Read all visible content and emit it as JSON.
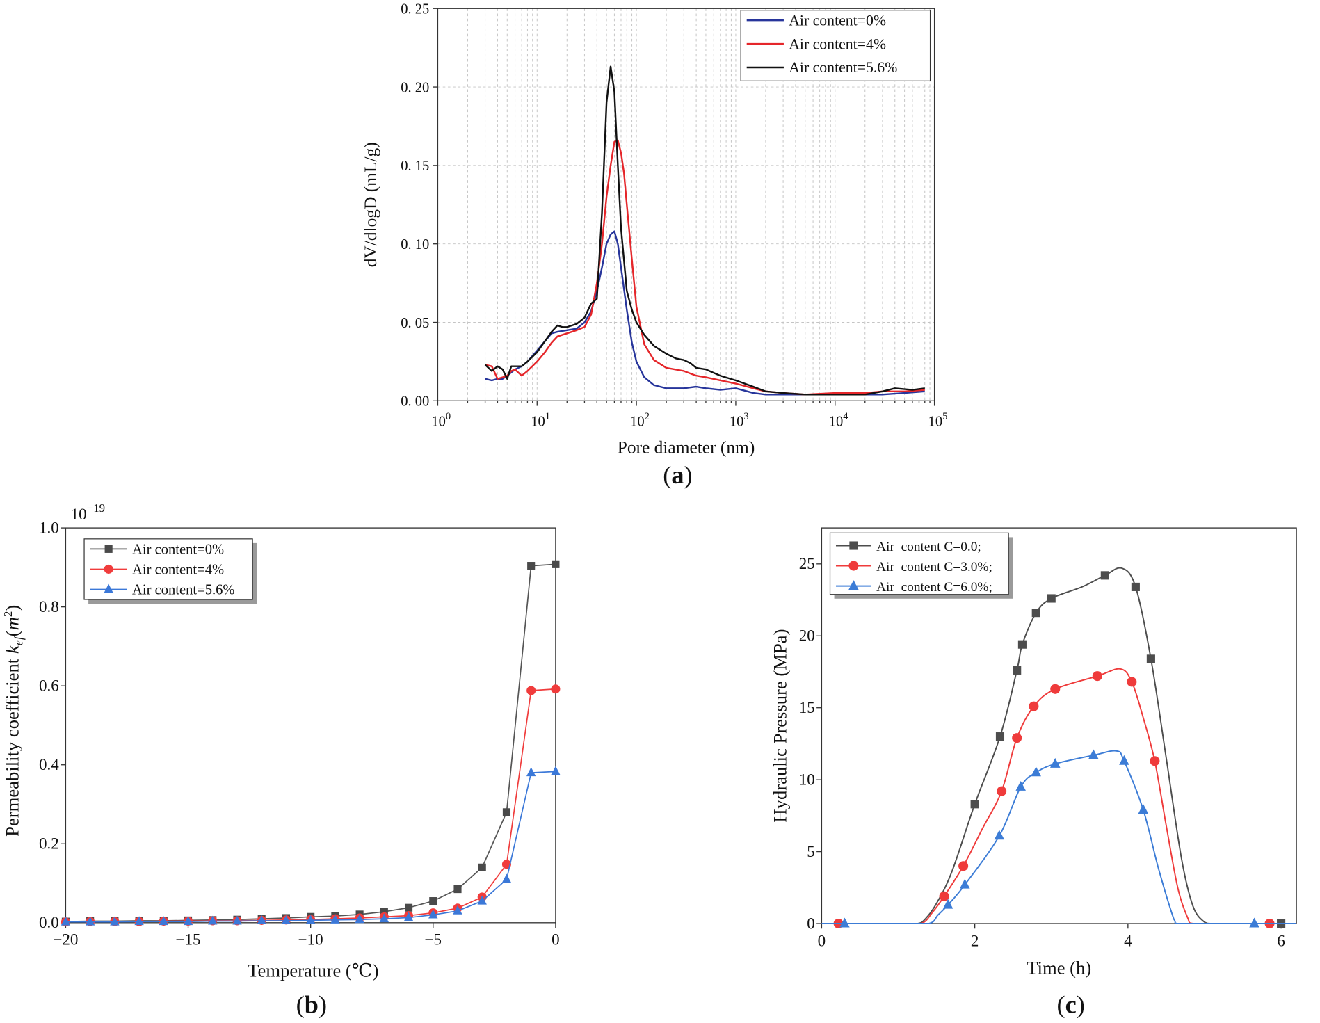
{
  "chart_data": [
    {
      "panel": "a",
      "type": "line",
      "panel_label": {
        "open": "(",
        "letter": "a",
        "close": ")"
      },
      "xlabel": "Pore diameter (nm)",
      "ylabel": "dV/dlogD (mL/g)",
      "xscale": "log",
      "xlim": [
        1,
        100000
      ],
      "ylim": [
        0,
        0.25
      ],
      "xticks": [
        {
          "value": 1,
          "base": "10",
          "exp": "0"
        },
        {
          "value": 10,
          "base": "10",
          "exp": "1"
        },
        {
          "value": 100,
          "base": "10",
          "exp": "2"
        },
        {
          "value": 1000,
          "base": "10",
          "exp": "3"
        },
        {
          "value": 10000,
          "base": "10",
          "exp": "4"
        },
        {
          "value": 100000,
          "base": "10",
          "exp": "5"
        }
      ],
      "yticks": [
        {
          "value": 0,
          "label": "0. 00"
        },
        {
          "value": 0.05,
          "label": "0. 05"
        },
        {
          "value": 0.1,
          "label": "0. 10"
        },
        {
          "value": 0.15,
          "label": "0. 15"
        },
        {
          "value": 0.2,
          "label": "0. 20"
        },
        {
          "value": 0.25,
          "label": "0. 25"
        }
      ],
      "grid": true,
      "legend_position": "top-right",
      "series": [
        {
          "name": "Air content=0%",
          "color": "#27359b",
          "marker": "none",
          "x": [
            3,
            3.5,
            4,
            4.5,
            5,
            6,
            7,
            8,
            10,
            12,
            14,
            16,
            20,
            25,
            30,
            35,
            40,
            45,
            50,
            55,
            60,
            65,
            70,
            80,
            90,
            100,
            120,
            150,
            200,
            300,
            400,
            500,
            700,
            1000,
            1500,
            2000,
            3000,
            5000,
            10000,
            20000,
            30000,
            50000,
            80000
          ],
          "y": [
            0.014,
            0.013,
            0.014,
            0.014,
            0.016,
            0.02,
            0.022,
            0.025,
            0.032,
            0.038,
            0.043,
            0.044,
            0.045,
            0.046,
            0.05,
            0.057,
            0.07,
            0.085,
            0.1,
            0.106,
            0.108,
            0.1,
            0.085,
            0.058,
            0.037,
            0.025,
            0.015,
            0.01,
            0.008,
            0.008,
            0.009,
            0.008,
            0.007,
            0.008,
            0.005,
            0.004,
            0.004,
            0.004,
            0.004,
            0.004,
            0.004,
            0.005,
            0.006
          ]
        },
        {
          "name": "Air content=4%",
          "color": "#e5262a",
          "marker": "none",
          "x": [
            3,
            3.5,
            4,
            4.5,
            5,
            5.5,
            6,
            7,
            8,
            10,
            12,
            14,
            16,
            20,
            25,
            30,
            35,
            40,
            45,
            50,
            55,
            60,
            65,
            70,
            75,
            80,
            90,
            100,
            120,
            150,
            200,
            300,
            400,
            500,
            700,
            1000,
            1500,
            2000,
            3000,
            5000,
            10000,
            20000,
            30000,
            50000,
            80000
          ],
          "y": [
            0.023,
            0.022,
            0.014,
            0.015,
            0.016,
            0.019,
            0.02,
            0.016,
            0.019,
            0.025,
            0.031,
            0.037,
            0.041,
            0.043,
            0.045,
            0.047,
            0.055,
            0.075,
            0.1,
            0.13,
            0.15,
            0.165,
            0.166,
            0.158,
            0.145,
            0.125,
            0.09,
            0.06,
            0.036,
            0.026,
            0.021,
            0.019,
            0.016,
            0.015,
            0.013,
            0.011,
            0.008,
            0.006,
            0.005,
            0.004,
            0.005,
            0.005,
            0.006,
            0.006,
            0.007
          ]
        },
        {
          "name": "Air content=5.6%",
          "color": "#111111",
          "marker": "none",
          "x": [
            3,
            3.5,
            4,
            4.5,
            5,
            5.5,
            6,
            7,
            8,
            10,
            12,
            14,
            16,
            18,
            20,
            25,
            30,
            35,
            40,
            45,
            50,
            55,
            60,
            65,
            70,
            80,
            90,
            100,
            120,
            150,
            200,
            250,
            300,
            350,
            400,
            500,
            700,
            1000,
            1500,
            2000,
            3000,
            5000,
            10000,
            20000,
            30000,
            40000,
            60000,
            80000
          ],
          "y": [
            0.023,
            0.019,
            0.022,
            0.02,
            0.014,
            0.022,
            0.022,
            0.022,
            0.025,
            0.031,
            0.038,
            0.044,
            0.048,
            0.047,
            0.047,
            0.049,
            0.053,
            0.062,
            0.065,
            0.12,
            0.19,
            0.213,
            0.197,
            0.15,
            0.11,
            0.07,
            0.058,
            0.05,
            0.042,
            0.035,
            0.03,
            0.027,
            0.026,
            0.024,
            0.021,
            0.02,
            0.016,
            0.013,
            0.009,
            0.006,
            0.005,
            0.004,
            0.004,
            0.004,
            0.006,
            0.008,
            0.007,
            0.008
          ]
        }
      ]
    },
    {
      "panel": "b",
      "type": "line",
      "panel_label": {
        "open": "(",
        "letter": "b",
        "close": ")"
      },
      "xlabel": "Temperature (℃)",
      "ylabel": {
        "text": "Permeability coefficient ",
        "var": "k",
        "sub": "ef",
        "open": "(",
        "unit": "m",
        "sup": "2",
        "close": ")"
      },
      "multiplier": {
        "base": "10",
        "exp": "−19"
      },
      "xscale": "linear",
      "xlim": [
        -20,
        0
      ],
      "ylim": [
        0,
        1.0
      ],
      "xticks": [
        {
          "value": -20,
          "label": "−20"
        },
        {
          "value": -15,
          "label": "−15"
        },
        {
          "value": -10,
          "label": "−10"
        },
        {
          "value": -5,
          "label": "−5"
        },
        {
          "value": 0,
          "label": "0"
        }
      ],
      "yticks": [
        {
          "value": 0,
          "label": "0.0"
        },
        {
          "value": 0.2,
          "label": "0.2"
        },
        {
          "value": 0.4,
          "label": "0.4"
        },
        {
          "value": 0.6,
          "label": "0.6"
        },
        {
          "value": 0.8,
          "label": "0.8"
        },
        {
          "value": 1.0,
          "label": "1.0"
        }
      ],
      "grid": false,
      "legend_position": "top-left",
      "series": [
        {
          "name": "Air content=0%",
          "color": "#555555",
          "marker_color": "#4a4a4a",
          "marker": "square",
          "x": [
            -20,
            -19,
            -18,
            -17,
            -16,
            -15,
            -14,
            -13,
            -12,
            -11,
            -10,
            -9,
            -8,
            -7,
            -6,
            -5,
            -4,
            -3,
            -2,
            -1,
            0
          ],
          "y": [
            0.003,
            0.004,
            0.004,
            0.005,
            0.005,
            0.006,
            0.007,
            0.008,
            0.01,
            0.012,
            0.015,
            0.017,
            0.021,
            0.028,
            0.038,
            0.055,
            0.085,
            0.14,
            0.28,
            0.904,
            0.908
          ]
        },
        {
          "name": "Air content=4%",
          "color": "#f03c3c",
          "marker_color": "#f03c3c",
          "marker": "circle",
          "x": [
            -20,
            -19,
            -18,
            -17,
            -16,
            -15,
            -14,
            -13,
            -12,
            -11,
            -10,
            -9,
            -8,
            -7,
            -6,
            -5,
            -4,
            -3,
            -2,
            -1,
            0
          ],
          "y": [
            0.002,
            0.003,
            0.003,
            0.003,
            0.004,
            0.004,
            0.005,
            0.005,
            0.006,
            0.007,
            0.008,
            0.01,
            0.012,
            0.015,
            0.018,
            0.025,
            0.037,
            0.065,
            0.148,
            0.588,
            0.592
          ]
        },
        {
          "name": "Air content=5.6%",
          "color": "#3b78d8",
          "marker_color": "#3b78d8",
          "marker": "triangle",
          "x": [
            -20,
            -19,
            -18,
            -17,
            -16,
            -15,
            -14,
            -13,
            -12,
            -11,
            -10,
            -9,
            -8,
            -7,
            -6,
            -5,
            -4,
            -3,
            -2,
            -1,
            0
          ],
          "y": [
            0.002,
            0.002,
            0.002,
            0.003,
            0.003,
            0.003,
            0.004,
            0.004,
            0.005,
            0.005,
            0.006,
            0.007,
            0.008,
            0.01,
            0.013,
            0.02,
            0.03,
            0.055,
            0.11,
            0.38,
            0.383
          ]
        }
      ]
    },
    {
      "panel": "c",
      "type": "line",
      "panel_label": {
        "open": "(",
        "letter": "c",
        "close": ")"
      },
      "xlabel": "Time (h)",
      "ylabel": "Hydraulic Pressure (MPa)",
      "xscale": "linear",
      "xlim": [
        0,
        6.2
      ],
      "ylim": [
        0,
        27.5
      ],
      "xticks": [
        {
          "value": 0,
          "label": "0"
        },
        {
          "value": 2,
          "label": "2"
        },
        {
          "value": 4,
          "label": "4"
        },
        {
          "value": 6,
          "label": "6"
        }
      ],
      "yticks": [
        {
          "value": 0,
          "label": "0"
        },
        {
          "value": 5,
          "label": "5"
        },
        {
          "value": 10,
          "label": "10"
        },
        {
          "value": 15,
          "label": "15"
        },
        {
          "value": 20,
          "label": "20"
        },
        {
          "value": 25,
          "label": "25"
        }
      ],
      "grid": false,
      "legend_position": "top-left",
      "series": [
        {
          "name": "Air  content C=0.0;",
          "color": "#4d4d4d",
          "marker_color": "#4d4d4d",
          "marker": "square",
          "points": {
            "x": [
              2.0,
              2.33,
              2.55,
              2.62,
              2.8,
              3.0,
              3.7,
              4.1,
              4.3,
              6.0
            ],
            "y": [
              8.3,
              13.0,
              17.6,
              19.4,
              21.6,
              22.6,
              24.2,
              23.4,
              18.4,
              0
            ]
          },
          "curve": {
            "x": [
              0,
              1.0,
              1.25,
              1.35,
              1.5,
              1.7,
              2.0,
              2.33,
              2.55,
              2.62,
              2.8,
              3.0,
              3.4,
              3.7,
              3.92,
              4.1,
              4.3,
              4.5,
              4.7,
              4.85,
              5.0,
              5.1,
              5.5,
              6.2
            ],
            "y": [
              0,
              0,
              0,
              0.3,
              1.4,
              3.6,
              8.3,
              13.0,
              17.6,
              19.4,
              21.6,
              22.6,
              23.4,
              24.2,
              24.7,
              23.4,
              18.4,
              11.5,
              4.5,
              1.2,
              0.1,
              0,
              0,
              0
            ]
          }
        },
        {
          "name": "Air  content C=3.0%;",
          "color": "#ef3b3b",
          "marker_color": "#ef3b3b",
          "marker": "circle",
          "points": {
            "x": [
              0.22,
              1.6,
              1.85,
              2.35,
              2.55,
              2.77,
              3.05,
              3.6,
              4.05,
              4.35,
              5.85
            ],
            "y": [
              0,
              1.9,
              4.0,
              9.2,
              12.9,
              15.1,
              16.3,
              17.2,
              16.8,
              11.3,
              0
            ]
          },
          "curve": {
            "x": [
              0,
              1.0,
              1.3,
              1.45,
              1.6,
              1.85,
              2.1,
              2.35,
              2.55,
              2.77,
              3.05,
              3.6,
              3.9,
              4.05,
              4.2,
              4.35,
              4.5,
              4.65,
              4.78,
              4.85,
              5.2,
              6.2
            ],
            "y": [
              0,
              0,
              0,
              0.8,
              1.9,
              4.0,
              6.6,
              9.2,
              12.9,
              15.1,
              16.3,
              17.2,
              17.7,
              16.8,
              14.3,
              11.3,
              6.8,
              2.5,
              0.4,
              0,
              0,
              0
            ]
          }
        },
        {
          "name": "Air  content C=6.0%;",
          "color": "#3c7cd6",
          "marker_color": "#3c7cd6",
          "marker": "triangle",
          "points": {
            "x": [
              0.3,
              1.65,
              1.87,
              2.32,
              2.6,
              2.8,
              3.05,
              3.55,
              3.95,
              4.2,
              5.65
            ],
            "y": [
              0,
              1.3,
              2.7,
              6.1,
              9.5,
              10.5,
              11.1,
              11.7,
              11.3,
              7.9,
              0
            ]
          },
          "curve": {
            "x": [
              0,
              1.0,
              1.4,
              1.52,
              1.65,
              1.87,
              2.32,
              2.6,
              2.8,
              3.05,
              3.55,
              3.85,
              3.95,
              4.2,
              4.4,
              4.6,
              4.65,
              5.0,
              6.2
            ],
            "y": [
              0,
              0,
              0,
              0.6,
              1.3,
              2.7,
              6.1,
              9.5,
              10.5,
              11.1,
              11.7,
              12.0,
              11.3,
              7.9,
              3.8,
              0.3,
              0,
              0,
              0
            ]
          }
        }
      ]
    }
  ]
}
